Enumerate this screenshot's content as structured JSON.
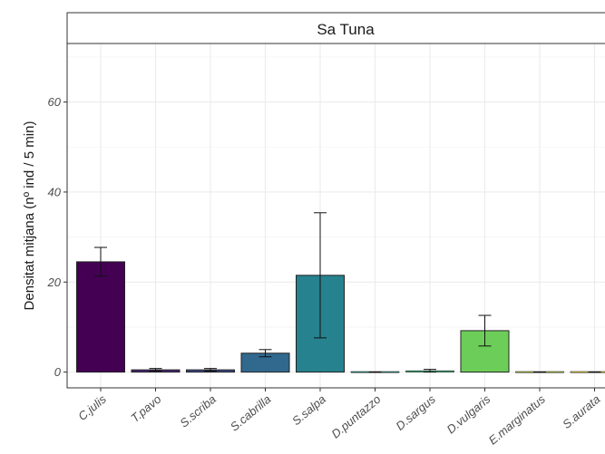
{
  "chart_data": {
    "type": "bar",
    "facet_title": "Sa Tuna",
    "ylabel": "Densitat mitjana  (nº ind / 5 min)",
    "xlabel": "",
    "ylim": [
      -3.5,
      73
    ],
    "yticks": [
      0,
      20,
      40,
      60
    ],
    "grid": true,
    "categories": [
      "C.julis",
      "T.pavo",
      "S.scriba",
      "S.cabrilla",
      "S.salpa",
      "D.puntazzo",
      "D.sargus",
      "D.vulgaris",
      "E.marginatus",
      "S.aurata"
    ],
    "values": [
      24.5,
      0.5,
      0.5,
      4.2,
      21.5,
      0.0,
      0.3,
      9.2,
      0.0,
      0.0
    ],
    "error_low": [
      21.3,
      0.2,
      0.2,
      3.4,
      7.6,
      0.0,
      0.0,
      5.8,
      0.0,
      0.0
    ],
    "error_high": [
      27.7,
      0.8,
      0.8,
      5.0,
      35.4,
      0.0,
      0.6,
      12.6,
      0.0,
      0.0
    ],
    "colors": [
      "#440154",
      "#482878",
      "#3e4a89",
      "#31688e",
      "#26828e",
      "#1f9e89",
      "#35b779",
      "#6dcd59",
      "#b4de2c",
      "#fde725"
    ]
  }
}
